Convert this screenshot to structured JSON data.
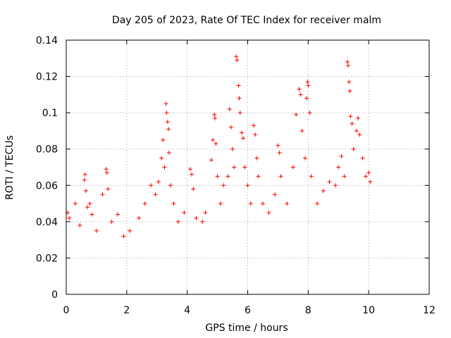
{
  "chart_data": {
    "type": "scatter",
    "title": "Day 205 of 2023, Rate Of TEC Index for receiver malm",
    "xlabel": "GPS time / hours",
    "ylabel": "ROTI / TECUs",
    "xlim": [
      0,
      12
    ],
    "ylim": [
      0,
      0.14
    ],
    "x_ticks": [
      0,
      2,
      4,
      6,
      8,
      10,
      12
    ],
    "x_tick_labels": [
      "0",
      "2",
      "4",
      "6",
      "8",
      "10",
      "12"
    ],
    "y_ticks": [
      0,
      0.02,
      0.04,
      0.06,
      0.08,
      0.1,
      0.12,
      0.14
    ],
    "y_tick_labels": [
      "0",
      "0.02",
      "0.04",
      "0.06",
      "0.08",
      "0.1",
      "0.12",
      "0.14"
    ],
    "grid": true,
    "marker": "plus",
    "color": "#ff0000",
    "series": [
      {
        "name": "ROTI",
        "x": [
          0.05,
          0.1,
          0.3,
          0.45,
          0.6,
          0.62,
          0.65,
          0.7,
          0.78,
          0.85,
          1.0,
          1.2,
          1.32,
          1.35,
          1.38,
          1.5,
          1.7,
          1.9,
          2.1,
          2.4,
          2.6,
          2.8,
          2.95,
          3.05,
          3.15,
          3.2,
          3.25,
          3.3,
          3.32,
          3.35,
          3.38,
          3.4,
          3.45,
          3.55,
          3.7,
          3.9,
          4.1,
          4.15,
          4.2,
          4.3,
          4.5,
          4.6,
          4.8,
          4.85,
          4.9,
          4.92,
          4.95,
          5.0,
          5.1,
          5.2,
          5.35,
          5.4,
          5.45,
          5.5,
          5.55,
          5.62,
          5.65,
          5.7,
          5.72,
          5.75,
          5.8,
          5.85,
          5.9,
          6.0,
          6.1,
          6.2,
          6.25,
          6.3,
          6.35,
          6.5,
          6.7,
          6.9,
          7.0,
          7.05,
          7.1,
          7.3,
          7.5,
          7.6,
          7.7,
          7.75,
          7.8,
          7.9,
          7.95,
          7.98,
          8.0,
          8.05,
          8.1,
          8.3,
          8.5,
          8.7,
          8.9,
          9.0,
          9.1,
          9.2,
          9.3,
          9.32,
          9.35,
          9.38,
          9.4,
          9.45,
          9.5,
          9.6,
          9.65,
          9.7,
          9.8,
          9.9,
          10.0,
          10.05
        ],
        "y": [
          0.045,
          0.042,
          0.05,
          0.038,
          0.063,
          0.066,
          0.057,
          0.048,
          0.05,
          0.044,
          0.035,
          0.055,
          0.069,
          0.067,
          0.058,
          0.04,
          0.044,
          0.032,
          0.035,
          0.042,
          0.05,
          0.06,
          0.055,
          0.062,
          0.075,
          0.085,
          0.07,
          0.105,
          0.1,
          0.095,
          0.091,
          0.078,
          0.06,
          0.05,
          0.04,
          0.045,
          0.069,
          0.066,
          0.058,
          0.042,
          0.04,
          0.045,
          0.074,
          0.085,
          0.099,
          0.097,
          0.083,
          0.065,
          0.05,
          0.06,
          0.065,
          0.102,
          0.092,
          0.08,
          0.07,
          0.131,
          0.129,
          0.115,
          0.108,
          0.1,
          0.089,
          0.086,
          0.07,
          0.06,
          0.05,
          0.093,
          0.088,
          0.075,
          0.065,
          0.05,
          0.045,
          0.055,
          0.082,
          0.078,
          0.065,
          0.05,
          0.07,
          0.099,
          0.113,
          0.11,
          0.09,
          0.075,
          0.108,
          0.117,
          0.115,
          0.1,
          0.065,
          0.05,
          0.057,
          0.062,
          0.06,
          0.07,
          0.076,
          0.065,
          0.128,
          0.126,
          0.117,
          0.112,
          0.098,
          0.094,
          0.08,
          0.09,
          0.097,
          0.088,
          0.075,
          0.065,
          0.067,
          0.062
        ]
      }
    ]
  }
}
